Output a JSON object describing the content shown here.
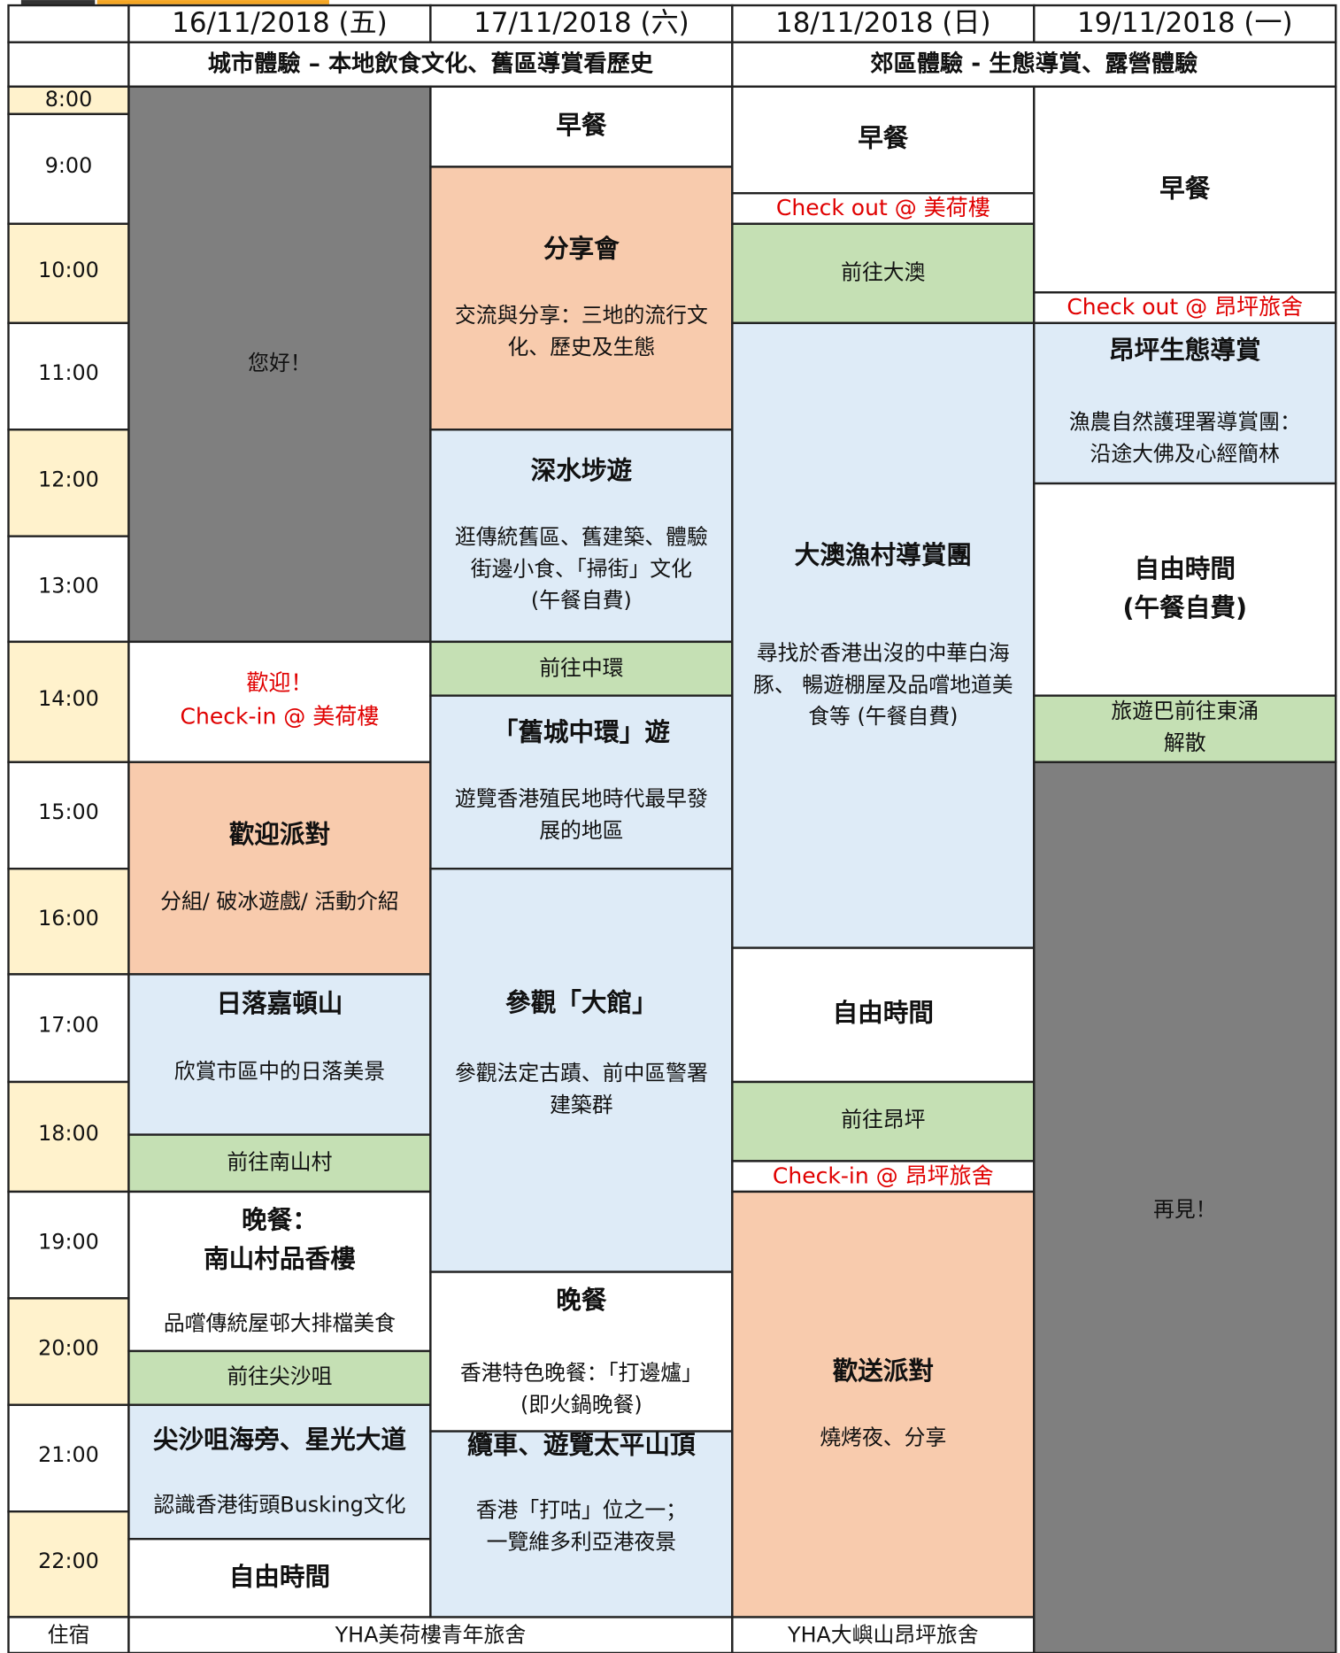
{
  "header": {
    "dates": [
      "16/11/2018 (五)",
      "17/11/2018 (六)",
      "18/11/2018 (日)",
      "19/11/2018 (一)"
    ],
    "themes": [
      "城市體驗 – 本地飲食文化、舊區導賞看歷史",
      "郊區體驗 - 生態導賞、露營體驗"
    ]
  },
  "times": [
    "8:00",
    "9:00",
    "10:00",
    "11:00",
    "12:00",
    "13:00",
    "14:00",
    "15:00",
    "16:00",
    "17:00",
    "18:00",
    "19:00",
    "20:00",
    "21:00",
    "22:00"
  ],
  "accommodation": {
    "label": "住宿",
    "places": [
      "YHA美荷樓青年旅舍",
      "YHA大嶼山昂坪旅舍"
    ]
  },
  "days": [
    {
      "events": [
        {
          "title": "您好！"
        },
        {
          "title": "歡迎！",
          "desc": [
            "Check-in @ 美荷樓"
          ]
        },
        {
          "title": "歡迎派對",
          "desc": [
            "分組/ 破冰遊戲/ 活動介紹"
          ]
        },
        {
          "title": "日落嘉頓山",
          "desc": [
            "欣賞市區中的日落美景"
          ]
        },
        {
          "title": "前往南山村"
        },
        {
          "title": [
            "晚餐：",
            "南山村品香樓"
          ],
          "desc": [
            "品嚐傳統屋邨大排檔美食"
          ]
        },
        {
          "title": "前往尖沙咀"
        },
        {
          "title": "尖沙咀海旁、星光大道",
          "desc": [
            "認識香港街頭Busking文化"
          ]
        },
        {
          "title": "自由時間"
        }
      ]
    },
    {
      "events": [
        {
          "title": "早餐"
        },
        {
          "title": "分享會",
          "desc": [
            "交流與分享：三地的流行文",
            "化、歷史及生態"
          ]
        },
        {
          "title": "深水埗遊",
          "desc": [
            "逛傳統舊區、舊建築、體驗",
            "街邊小食、「掃街」文化",
            "(午餐自費)"
          ]
        },
        {
          "title": "前往中環"
        },
        {
          "title": "「舊城中環」遊",
          "desc": [
            "遊覽香港殖民地時代最早發",
            "展的地區"
          ]
        },
        {
          "title": "參觀「大館」",
          "desc": [
            "參觀法定古蹟、前中區警署",
            "建築群"
          ]
        },
        {
          "title": "晚餐",
          "desc": [
            "香港特色晚餐：「打邊爐」",
            "(即火鍋晚餐)"
          ]
        },
        {
          "title": "纜車、遊覽太平山頂",
          "desc": [
            "香港「打咕」位之一；",
            "一覽維多利亞港夜景"
          ]
        }
      ]
    },
    {
      "events": [
        {
          "title": "早餐"
        },
        {
          "title": "Check out @ 美荷樓"
        },
        {
          "title": "前往大澳"
        },
        {
          "title": "大澳漁村導賞團",
          "desc": [
            "尋找於香港出沒的中華白海",
            "豚、 暢遊棚屋及品嚐地道美",
            "食等 (午餐自費)"
          ]
        },
        {
          "title": "自由時間"
        },
        {
          "title": "前往昂坪"
        },
        {
          "title": "Check-in @ 昂坪旅舍"
        },
        {
          "title": "歡送派對",
          "desc": [
            "燒烤夜、分享"
          ]
        }
      ]
    },
    {
      "events": [
        {
          "title": "早餐"
        },
        {
          "title": "Check out @ 昂坪旅舍"
        },
        {
          "title": "昂坪生態導賞",
          "desc": [
            "漁農自然護理署導賞團：",
            "沿途大佛及心經簡林"
          ]
        },
        {
          "title": [
            "自由時間",
            "(午餐自費)"
          ]
        },
        {
          "title": [
            "旅遊巴前往東涌",
            "解散"
          ]
        },
        {
          "title": "再見！"
        }
      ]
    }
  ]
}
